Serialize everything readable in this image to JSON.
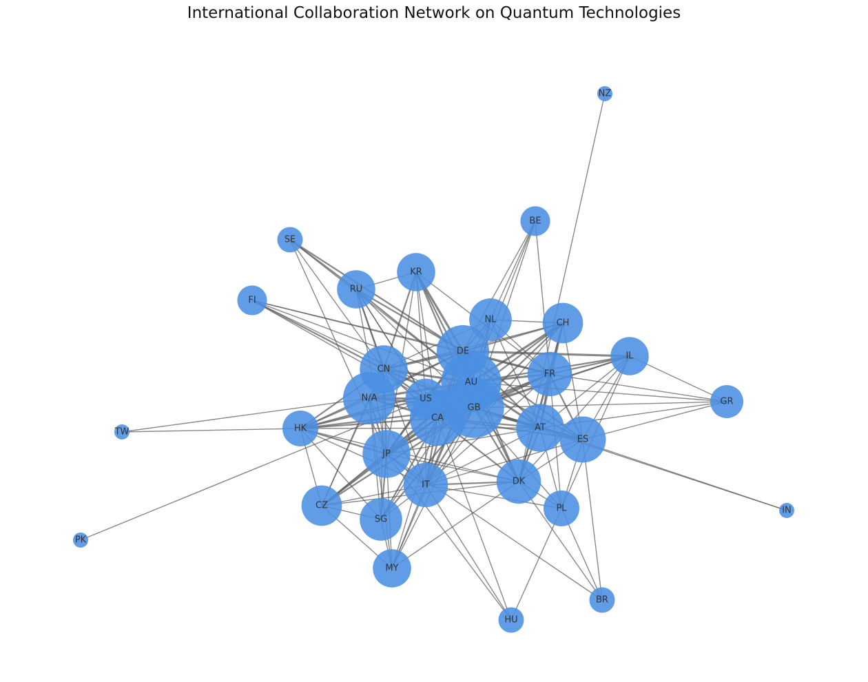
{
  "title": "International Collaboration Network on Quantum Technologies",
  "style": {
    "node_color": "#4a90e2",
    "edge_color": "#555555",
    "label_color": "#333333"
  },
  "nodes": [
    {
      "id": "NZ",
      "weight": 1
    },
    {
      "id": "BE",
      "weight": 3
    },
    {
      "id": "SE",
      "weight": 2
    },
    {
      "id": "KR",
      "weight": 6
    },
    {
      "id": "RU",
      "weight": 6
    },
    {
      "id": "FI",
      "weight": 3
    },
    {
      "id": "NL",
      "weight": 8
    },
    {
      "id": "CH",
      "weight": 7
    },
    {
      "id": "IL",
      "weight": 6
    },
    {
      "id": "DE",
      "weight": 14
    },
    {
      "id": "CN",
      "weight": 11
    },
    {
      "id": "AU",
      "weight": 20
    },
    {
      "id": "FR",
      "weight": 9
    },
    {
      "id": "N/A",
      "weight": 14
    },
    {
      "id": "US",
      "weight": 7
    },
    {
      "id": "GR",
      "weight": 4
    },
    {
      "id": "GB",
      "weight": 20
    },
    {
      "id": "CA",
      "weight": 16
    },
    {
      "id": "HK",
      "weight": 5
    },
    {
      "id": "TW",
      "weight": 1
    },
    {
      "id": "AT",
      "weight": 11
    },
    {
      "id": "ES",
      "weight": 10
    },
    {
      "id": "JP",
      "weight": 11
    },
    {
      "id": "IT",
      "weight": 9
    },
    {
      "id": "DK",
      "weight": 9
    },
    {
      "id": "CZ",
      "weight": 7
    },
    {
      "id": "PL",
      "weight": 5
    },
    {
      "id": "SG",
      "weight": 8
    },
    {
      "id": "IN",
      "weight": 1
    },
    {
      "id": "PK",
      "weight": 1
    },
    {
      "id": "MY",
      "weight": 6
    },
    {
      "id": "BR",
      "weight": 2
    },
    {
      "id": "HU",
      "weight": 2
    }
  ],
  "edges": [
    [
      "NZ",
      "DK",
      1
    ],
    [
      "BE",
      "NL",
      1
    ],
    [
      "BE",
      "DE",
      1
    ],
    [
      "BE",
      "AU",
      1
    ],
    [
      "BE",
      "FR",
      1
    ],
    [
      "BE",
      "GB",
      1
    ],
    [
      "SE",
      "RU",
      2
    ],
    [
      "SE",
      "DE",
      2
    ],
    [
      "SE",
      "AU",
      1
    ],
    [
      "SE",
      "JP",
      1
    ],
    [
      "SE",
      "CN",
      1
    ],
    [
      "KR",
      "RU",
      1
    ],
    [
      "KR",
      "DE",
      3
    ],
    [
      "KR",
      "AU",
      2
    ],
    [
      "KR",
      "CN",
      2
    ],
    [
      "KR",
      "US",
      1
    ],
    [
      "KR",
      "GB",
      2
    ],
    [
      "KR",
      "CA",
      1
    ],
    [
      "KR",
      "JP",
      1
    ],
    [
      "KR",
      "FR",
      1
    ],
    [
      "RU",
      "DE",
      2
    ],
    [
      "RU",
      "CN",
      2
    ],
    [
      "RU",
      "AU",
      2
    ],
    [
      "RU",
      "US",
      1
    ],
    [
      "RU",
      "GB",
      1
    ],
    [
      "RU",
      "CA",
      1
    ],
    [
      "RU",
      "JP",
      1
    ],
    [
      "RU",
      "IT",
      1
    ],
    [
      "FI",
      "CN",
      2
    ],
    [
      "FI",
      "DE",
      1
    ],
    [
      "FI",
      "AU",
      1
    ],
    [
      "FI",
      "FR",
      1
    ],
    [
      "FI",
      "US",
      1
    ],
    [
      "FI",
      "GB",
      1
    ],
    [
      "NL",
      "DE",
      2
    ],
    [
      "NL",
      "AU",
      2
    ],
    [
      "NL",
      "CH",
      1
    ],
    [
      "NL",
      "FR",
      1
    ],
    [
      "NL",
      "GB",
      2
    ],
    [
      "NL",
      "CA",
      1
    ],
    [
      "NL",
      "CN",
      1
    ],
    [
      "NL",
      "AT",
      1
    ],
    [
      "CH",
      "DE",
      2
    ],
    [
      "CH",
      "AU",
      3
    ],
    [
      "CH",
      "FR",
      2
    ],
    [
      "CH",
      "GB",
      2
    ],
    [
      "CH",
      "CA",
      2
    ],
    [
      "CH",
      "AT",
      2
    ],
    [
      "CH",
      "IT",
      1
    ],
    [
      "CH",
      "DK",
      1
    ],
    [
      "CH",
      "ES",
      1
    ],
    [
      "CH",
      "CN",
      1
    ],
    [
      "IL",
      "DE",
      3
    ],
    [
      "IL",
      "AU",
      2
    ],
    [
      "IL",
      "FR",
      2
    ],
    [
      "IL",
      "GB",
      2
    ],
    [
      "IL",
      "CA",
      1
    ],
    [
      "IL",
      "AT",
      1
    ],
    [
      "IL",
      "ES",
      1
    ],
    [
      "IL",
      "GR",
      1
    ],
    [
      "IL",
      "PL",
      1
    ],
    [
      "IL",
      "DK",
      1
    ],
    [
      "DE",
      "AU",
      4
    ],
    [
      "DE",
      "CN",
      3
    ],
    [
      "DE",
      "FR",
      3
    ],
    [
      "DE",
      "US",
      2
    ],
    [
      "DE",
      "GB",
      3
    ],
    [
      "DE",
      "CA",
      3
    ],
    [
      "DE",
      "N/A",
      2
    ],
    [
      "DE",
      "AT",
      2
    ],
    [
      "DE",
      "JP",
      2
    ],
    [
      "DE",
      "IT",
      2
    ],
    [
      "DE",
      "DK",
      2
    ],
    [
      "DE",
      "HK",
      1
    ],
    [
      "DE",
      "ES",
      2
    ],
    [
      "CN",
      "AU",
      3
    ],
    [
      "CN",
      "N/A",
      2
    ],
    [
      "CN",
      "US",
      2
    ],
    [
      "CN",
      "GB",
      3
    ],
    [
      "CN",
      "CA",
      2
    ],
    [
      "CN",
      "HK",
      2
    ],
    [
      "CN",
      "JP",
      2
    ],
    [
      "CN",
      "SG",
      1
    ],
    [
      "CN",
      "CZ",
      1
    ],
    [
      "AU",
      "FR",
      3
    ],
    [
      "AU",
      "N/A",
      3
    ],
    [
      "AU",
      "US",
      3
    ],
    [
      "AU",
      "GB",
      4
    ],
    [
      "AU",
      "CA",
      4
    ],
    [
      "AU",
      "AT",
      3
    ],
    [
      "AU",
      "ES",
      2
    ],
    [
      "AU",
      "JP",
      3
    ],
    [
      "AU",
      "IT",
      2
    ],
    [
      "AU",
      "DK",
      2
    ],
    [
      "AU",
      "HK",
      2
    ],
    [
      "AU",
      "CZ",
      1
    ],
    [
      "AU",
      "GR",
      1
    ],
    [
      "AU",
      "SG",
      1
    ],
    [
      "AU",
      "MY",
      1
    ],
    [
      "FR",
      "GB",
      3
    ],
    [
      "FR",
      "CA",
      2
    ],
    [
      "FR",
      "AT",
      2
    ],
    [
      "FR",
      "ES",
      2
    ],
    [
      "FR",
      "DK",
      2
    ],
    [
      "FR",
      "GR",
      1
    ],
    [
      "FR",
      "JP",
      1
    ],
    [
      "FR",
      "PL",
      1
    ],
    [
      "FR",
      "IT",
      1
    ],
    [
      "N/A",
      "US",
      3
    ],
    [
      "N/A",
      "GB",
      2
    ],
    [
      "N/A",
      "CA",
      3
    ],
    [
      "N/A",
      "HK",
      2
    ],
    [
      "N/A",
      "JP",
      2
    ],
    [
      "N/A",
      "TW",
      1
    ],
    [
      "N/A",
      "SG",
      1
    ],
    [
      "N/A",
      "CZ",
      1
    ],
    [
      "N/A",
      "IT",
      1
    ],
    [
      "N/A",
      "MY",
      1
    ],
    [
      "US",
      "GB",
      3
    ],
    [
      "US",
      "CA",
      3
    ],
    [
      "US",
      "HK",
      2
    ],
    [
      "US",
      "JP",
      2
    ],
    [
      "US",
      "IT",
      1
    ],
    [
      "US",
      "PK",
      1
    ],
    [
      "US",
      "AT",
      1
    ],
    [
      "GB",
      "CA",
      4
    ],
    [
      "GB",
      "AT",
      3
    ],
    [
      "GB",
      "ES",
      2
    ],
    [
      "GB",
      "JP",
      2
    ],
    [
      "GB",
      "IT",
      2
    ],
    [
      "GB",
      "DK",
      2
    ],
    [
      "GB",
      "HK",
      2
    ],
    [
      "GB",
      "CZ",
      2
    ],
    [
      "GB",
      "SG",
      2
    ],
    [
      "GB",
      "GR",
      1
    ],
    [
      "GB",
      "PL",
      1
    ],
    [
      "GB",
      "MY",
      1
    ],
    [
      "GB",
      "IN",
      1
    ],
    [
      "CA",
      "AT",
      2
    ],
    [
      "CA",
      "ES",
      2
    ],
    [
      "CA",
      "JP",
      3
    ],
    [
      "CA",
      "IT",
      2
    ],
    [
      "CA",
      "DK",
      2
    ],
    [
      "CA",
      "HK",
      2
    ],
    [
      "CA",
      "CZ",
      2
    ],
    [
      "CA",
      "SG",
      2
    ],
    [
      "CA",
      "MY",
      1
    ],
    [
      "CA",
      "HU",
      1
    ],
    [
      "HK",
      "JP",
      2
    ],
    [
      "HK",
      "IT",
      1
    ],
    [
      "HK",
      "TW",
      1
    ],
    [
      "HK",
      "SG",
      1
    ],
    [
      "HK",
      "CZ",
      1
    ],
    [
      "HK",
      "DK",
      1
    ],
    [
      "HK",
      "AT",
      1
    ],
    [
      "AT",
      "ES",
      2
    ],
    [
      "AT",
      "DK",
      2
    ],
    [
      "AT",
      "IT",
      1
    ],
    [
      "AT",
      "PL",
      1
    ],
    [
      "AT",
      "GR",
      1
    ],
    [
      "AT",
      "IN",
      1
    ],
    [
      "AT",
      "JP",
      1
    ],
    [
      "ES",
      "DK",
      1
    ],
    [
      "ES",
      "PL",
      1
    ],
    [
      "ES",
      "BR",
      1
    ],
    [
      "ES",
      "IT",
      1
    ],
    [
      "ES",
      "GR",
      1
    ],
    [
      "JP",
      "IT",
      2
    ],
    [
      "JP",
      "SG",
      2
    ],
    [
      "JP",
      "CZ",
      2
    ],
    [
      "JP",
      "MY",
      1
    ],
    [
      "JP",
      "DK",
      1
    ],
    [
      "JP",
      "BR",
      1
    ],
    [
      "JP",
      "HU",
      1
    ],
    [
      "IT",
      "DK",
      2
    ],
    [
      "IT",
      "CZ",
      1
    ],
    [
      "IT",
      "SG",
      1
    ],
    [
      "IT",
      "MY",
      1
    ],
    [
      "IT",
      "PL",
      1
    ],
    [
      "IT",
      "HU",
      1
    ],
    [
      "DK",
      "PL",
      1
    ],
    [
      "DK",
      "CZ",
      1
    ],
    [
      "DK",
      "MY",
      1
    ],
    [
      "DK",
      "BR",
      1
    ],
    [
      "CZ",
      "SG",
      1
    ],
    [
      "CZ",
      "MY",
      1
    ],
    [
      "PL",
      "HU",
      1
    ],
    [
      "PL",
      "BR",
      1
    ],
    [
      "SG",
      "MY",
      1
    ]
  ]
}
